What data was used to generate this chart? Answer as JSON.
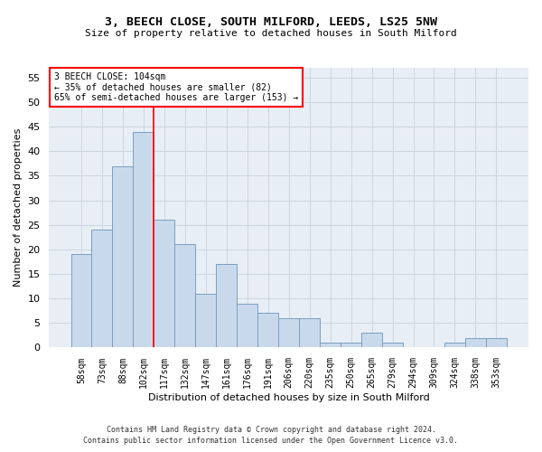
{
  "title": "3, BEECH CLOSE, SOUTH MILFORD, LEEDS, LS25 5NW",
  "subtitle": "Size of property relative to detached houses in South Milford",
  "xlabel": "Distribution of detached houses by size in South Milford",
  "ylabel": "Number of detached properties",
  "bar_color": "#c9d9ec",
  "bar_edge_color": "#7a9fc0",
  "categories": [
    "58sqm",
    "73sqm",
    "88sqm",
    "102sqm",
    "117sqm",
    "132sqm",
    "147sqm",
    "161sqm",
    "176sqm",
    "191sqm",
    "206sqm",
    "220sqm",
    "235sqm",
    "250sqm",
    "265sqm",
    "279sqm",
    "294sqm",
    "309sqm",
    "324sqm",
    "338sqm",
    "353sqm"
  ],
  "values": [
    19,
    24,
    37,
    44,
    26,
    21,
    11,
    17,
    9,
    7,
    6,
    6,
    1,
    1,
    3,
    1,
    0,
    0,
    1,
    2,
    2
  ],
  "ylim": [
    0,
    57
  ],
  "yticks": [
    0,
    5,
    10,
    15,
    20,
    25,
    30,
    35,
    40,
    45,
    50,
    55
  ],
  "property_label": "3 BEECH CLOSE: 104sqm",
  "pct_smaller": "35% of detached houses are smaller (82)",
  "pct_larger": "65% of semi-detached houses are larger (153)",
  "vline_x_index": 3.5,
  "grid_color": "#ccd5e0",
  "background_color": "#e8eef5",
  "footnote1": "Contains HM Land Registry data © Crown copyright and database right 2024.",
  "footnote2": "Contains public sector information licensed under the Open Government Licence v3.0."
}
